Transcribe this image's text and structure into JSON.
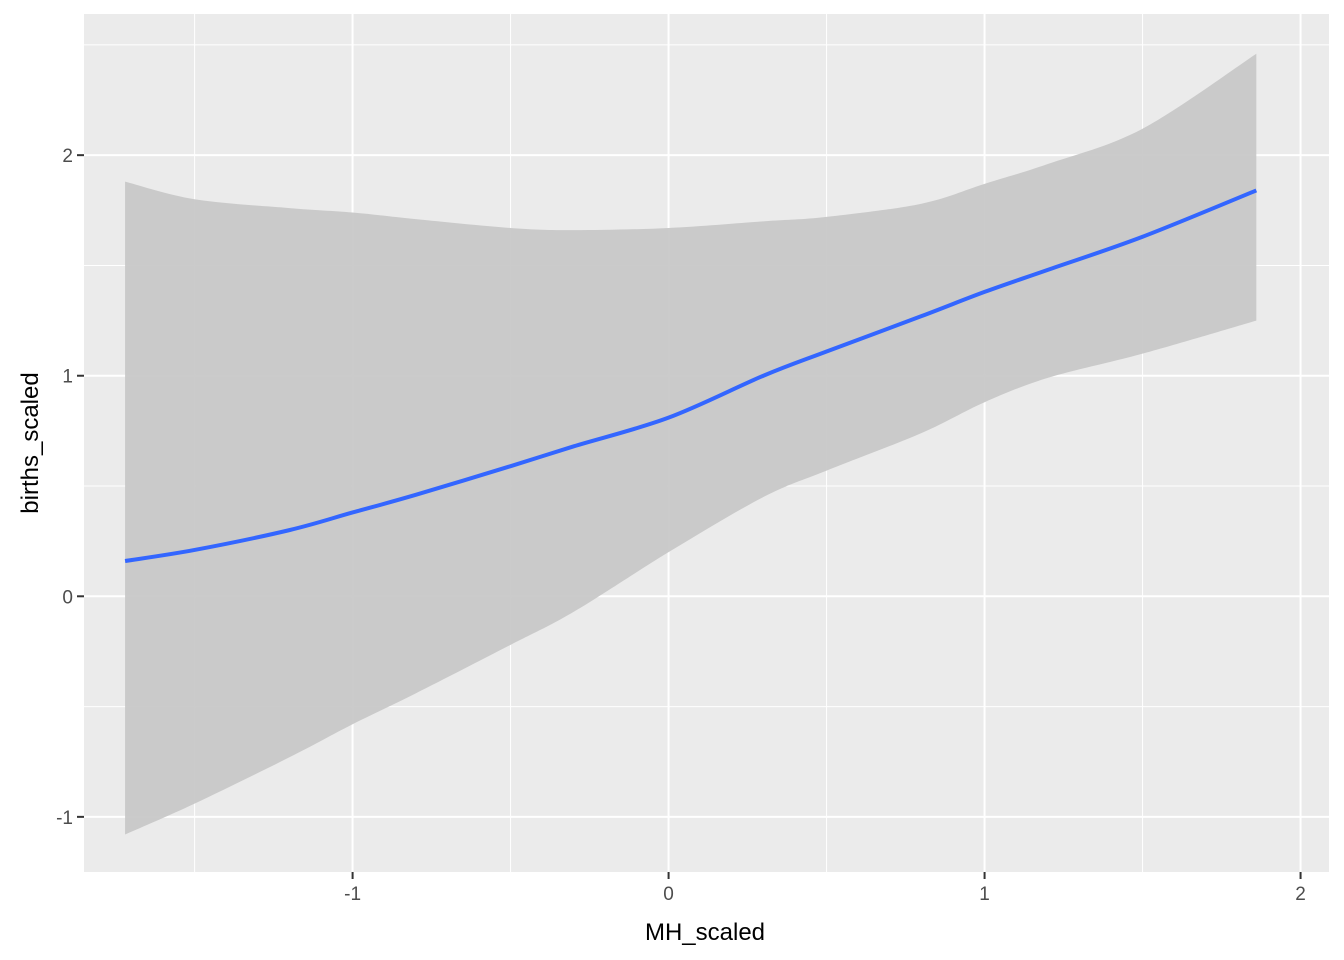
{
  "chart_data": {
    "type": "line",
    "title": "",
    "xlabel": "MH_scaled",
    "ylabel": "births_scaled",
    "xlim": [
      -1.85,
      2.09
    ],
    "ylim": [
      -1.25,
      2.64
    ],
    "x_ticks": [
      -1,
      0,
      1,
      2
    ],
    "x_tick_labels": [
      "-1",
      "0",
      "1",
      "2"
    ],
    "y_ticks": [
      -1,
      0,
      1,
      2
    ],
    "y_tick_labels": [
      "-1",
      "0",
      "1",
      "2"
    ],
    "grid": true,
    "legend": "none",
    "colors": {
      "panel_background": "#ebebeb",
      "grid": "#ffffff",
      "ribbon": "#c8c8c8",
      "line": "#3366ff",
      "tick_text": "#4d4d4d",
      "title_text": "#000000"
    },
    "series": [
      {
        "type": "smooth",
        "x": [
          -1.72,
          -1.5,
          -1.2,
          -1.0,
          -0.8,
          -0.5,
          -0.3,
          0.0,
          0.3,
          0.5,
          0.8,
          1.0,
          1.2,
          1.5,
          1.86
        ],
        "y": [
          0.16,
          0.21,
          0.3,
          0.38,
          0.46,
          0.59,
          0.68,
          0.81,
          1.0,
          1.11,
          1.27,
          1.38,
          1.48,
          1.63,
          1.84
        ],
        "lower": [
          -1.08,
          -0.94,
          -0.73,
          -0.58,
          -0.44,
          -0.22,
          -0.07,
          0.2,
          0.45,
          0.57,
          0.74,
          0.88,
          0.99,
          1.1,
          1.25
        ],
        "upper": [
          1.88,
          1.8,
          1.76,
          1.74,
          1.71,
          1.67,
          1.66,
          1.67,
          1.7,
          1.72,
          1.78,
          1.87,
          1.96,
          2.12,
          2.46
        ]
      }
    ]
  }
}
